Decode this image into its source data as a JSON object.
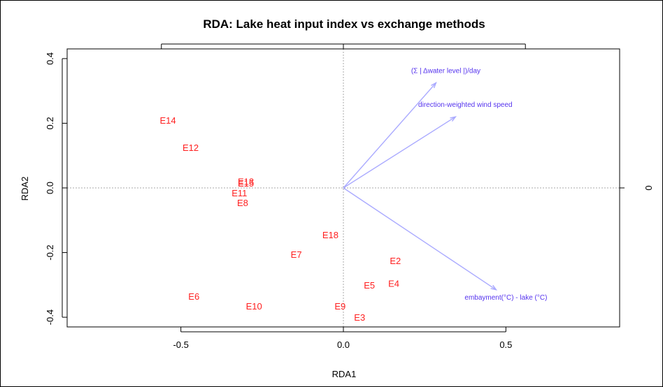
{
  "chart_data": {
    "type": "scatter",
    "title": "RDA: Lake heat input index vs exchange methods",
    "xlabel": "RDA1",
    "ylabel": "RDA2",
    "xlim": [
      -0.85,
      0.85
    ],
    "ylim": [
      -0.43,
      0.43
    ],
    "x_ticks": [
      -0.5,
      0.0,
      0.5
    ],
    "x_tick_labels": [
      "-0.5",
      "0.0",
      "0.5"
    ],
    "y_ticks": [
      -0.4,
      -0.2,
      0.0,
      0.2,
      0.4
    ],
    "y_tick_labels": [
      "-0.4",
      "-0.2",
      "0.0",
      "0.2",
      "0.4"
    ],
    "top_ticks": [
      -0.56,
      0.0,
      0.56
    ],
    "right_tick_labels": [
      {
        "value": 0.0,
        "label": "0"
      }
    ],
    "grid": false,
    "zero_lines": true,
    "sites": [
      {
        "label": "E14",
        "x": -0.54,
        "y": 0.21
      },
      {
        "label": "E12",
        "x": -0.47,
        "y": 0.125
      },
      {
        "label": "E13",
        "x": -0.3,
        "y": 0.02
      },
      {
        "label": "E15",
        "x": -0.3,
        "y": 0.015
      },
      {
        "label": "E11",
        "x": -0.32,
        "y": -0.015
      },
      {
        "label": "E8",
        "x": -0.31,
        "y": -0.045
      },
      {
        "label": "E18",
        "x": -0.04,
        "y": -0.145
      },
      {
        "label": "E7",
        "x": -0.145,
        "y": -0.205
      },
      {
        "label": "E2",
        "x": 0.16,
        "y": -0.225
      },
      {
        "label": "E5",
        "x": 0.08,
        "y": -0.3
      },
      {
        "label": "E4",
        "x": 0.155,
        "y": -0.295
      },
      {
        "label": "E6",
        "x": -0.46,
        "y": -0.335
      },
      {
        "label": "E10",
        "x": -0.275,
        "y": -0.365
      },
      {
        "label": "E9",
        "x": -0.01,
        "y": -0.365
      },
      {
        "label": "E3",
        "x": 0.05,
        "y": -0.4
      }
    ],
    "vectors": [
      {
        "label": "(Σ | Δwater level |)/day",
        "x": 0.285,
        "y": 0.325
      },
      {
        "label": "direction-weighted wind speed",
        "x": 0.345,
        "y": 0.22
      },
      {
        "label": "embayment(°C) - lake (°C)",
        "x": 0.47,
        "y": -0.315
      }
    ],
    "colors": {
      "sites": "#ff2020",
      "vectors": "#aaaaff",
      "vector_labels": "#5533ee",
      "axes": "#000000",
      "zero_lines": "#aaaaaa"
    }
  }
}
